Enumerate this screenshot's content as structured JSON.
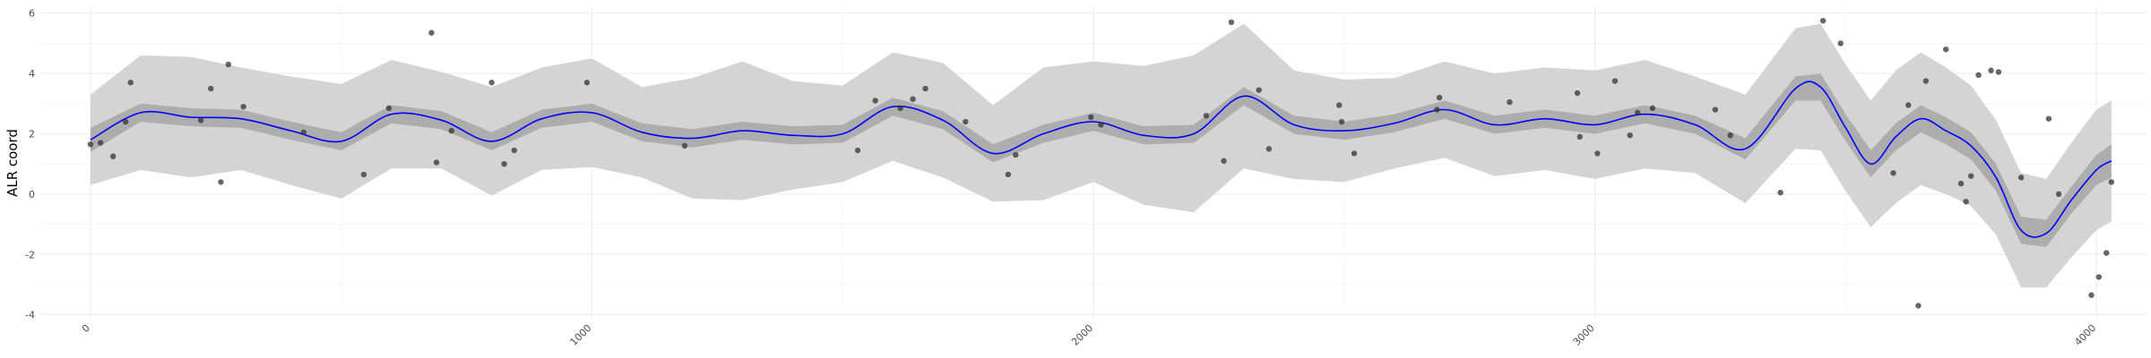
{
  "chart_data": {
    "type": "line",
    "title": "",
    "xlabel": "",
    "ylabel": "ALR coord",
    "xlim": [
      -100,
      4100
    ],
    "ylim": [
      -4.1,
      6.2
    ],
    "x_ticks": [
      "0",
      "1000",
      "2000",
      "3000",
      "4000"
    ],
    "y_ticks": [
      "-4",
      "-2",
      "0",
      "2",
      "4",
      "6"
    ],
    "grid": true,
    "colors": {
      "line": "#0000ff",
      "band_inner": "#adadad",
      "band_outer": "#d4d4d4",
      "points": "#333333",
      "grid": "#ebebeb"
    },
    "fit": {
      "x": [
        0,
        100,
        200,
        300,
        400,
        500,
        600,
        700,
        800,
        900,
        1000,
        1100,
        1200,
        1300,
        1400,
        1500,
        1600,
        1700,
        1800,
        1900,
        2000,
        2100,
        2200,
        2300,
        2400,
        2500,
        2600,
        2700,
        2800,
        2900,
        3000,
        3100,
        3200,
        3300,
        3400,
        3450,
        3500,
        3550,
        3600,
        3650,
        3700,
        3750,
        3800,
        3850,
        3900,
        3950,
        4000,
        4030
      ],
      "y": [
        1.8,
        2.7,
        2.55,
        2.5,
        2.1,
        1.75,
        2.65,
        2.45,
        1.75,
        2.5,
        2.7,
        2.05,
        1.85,
        2.1,
        1.95,
        2.0,
        2.9,
        2.45,
        1.35,
        2.0,
        2.4,
        1.95,
        2.0,
        3.25,
        2.3,
        2.1,
        2.35,
        2.8,
        2.3,
        2.5,
        2.3,
        2.65,
        2.3,
        1.5,
        3.5,
        3.55,
        2.2,
        1.0,
        1.9,
        2.5,
        2.1,
        1.6,
        0.55,
        -1.2,
        -1.3,
        -0.2,
        0.8,
        1.1
      ],
      "inner_half_width": [
        0.4,
        0.3,
        0.3,
        0.3,
        0.3,
        0.3,
        0.3,
        0.3,
        0.3,
        0.3,
        0.3,
        0.3,
        0.3,
        0.3,
        0.3,
        0.3,
        0.3,
        0.3,
        0.3,
        0.3,
        0.3,
        0.3,
        0.3,
        0.3,
        0.3,
        0.3,
        0.3,
        0.3,
        0.3,
        0.3,
        0.3,
        0.3,
        0.3,
        0.35,
        0.4,
        0.45,
        0.45,
        0.45,
        0.45,
        0.45,
        0.45,
        0.45,
        0.45,
        0.45,
        0.45,
        0.45,
        0.5,
        0.55
      ],
      "outer_half_width": [
        1.5,
        1.9,
        2.0,
        1.7,
        1.8,
        1.9,
        1.8,
        1.6,
        1.8,
        1.7,
        1.8,
        1.5,
        2.0,
        2.3,
        1.8,
        1.6,
        1.8,
        1.9,
        1.6,
        2.2,
        2.0,
        2.3,
        2.6,
        2.4,
        1.8,
        1.7,
        1.5,
        1.6,
        1.7,
        1.7,
        1.8,
        1.8,
        1.6,
        1.8,
        2.0,
        2.1,
        2.1,
        2.1,
        2.2,
        2.2,
        2.1,
        2.0,
        1.9,
        1.9,
        1.8,
        1.9,
        2.0,
        2.0
      ]
    },
    "points": [
      [
        0,
        1.65
      ],
      [
        20,
        1.7
      ],
      [
        45,
        1.25
      ],
      [
        70,
        2.4
      ],
      [
        80,
        3.7
      ],
      [
        220,
        2.45
      ],
      [
        240,
        3.5
      ],
      [
        260,
        0.4
      ],
      [
        275,
        4.3
      ],
      [
        305,
        2.9
      ],
      [
        425,
        2.05
      ],
      [
        545,
        0.65
      ],
      [
        595,
        2.85
      ],
      [
        680,
        5.35
      ],
      [
        690,
        1.05
      ],
      [
        720,
        2.1
      ],
      [
        800,
        3.7
      ],
      [
        825,
        1.0
      ],
      [
        845,
        1.45
      ],
      [
        990,
        3.7
      ],
      [
        1185,
        1.6
      ],
      [
        1530,
        1.45
      ],
      [
        1565,
        3.1
      ],
      [
        1615,
        2.85
      ],
      [
        1640,
        3.15
      ],
      [
        1665,
        3.5
      ],
      [
        1745,
        2.4
      ],
      [
        1830,
        0.65
      ],
      [
        1845,
        1.3
      ],
      [
        1995,
        2.55
      ],
      [
        2015,
        2.3
      ],
      [
        2225,
        2.6
      ],
      [
        2260,
        1.1
      ],
      [
        2275,
        5.7
      ],
      [
        2330,
        3.45
      ],
      [
        2350,
        1.5
      ],
      [
        2490,
        2.95
      ],
      [
        2495,
        2.4
      ],
      [
        2520,
        1.35
      ],
      [
        2685,
        2.8
      ],
      [
        2690,
        3.2
      ],
      [
        2830,
        3.05
      ],
      [
        2965,
        3.35
      ],
      [
        2970,
        1.9
      ],
      [
        3005,
        1.35
      ],
      [
        3040,
        3.75
      ],
      [
        3070,
        1.95
      ],
      [
        3085,
        2.7
      ],
      [
        3115,
        2.85
      ],
      [
        3240,
        2.8
      ],
      [
        3270,
        1.95
      ],
      [
        3370,
        0.05
      ],
      [
        3455,
        5.75
      ],
      [
        3490,
        5.0
      ],
      [
        3595,
        0.7
      ],
      [
        3625,
        2.95
      ],
      [
        3645,
        -3.7
      ],
      [
        3660,
        3.75
      ],
      [
        3700,
        4.8
      ],
      [
        3730,
        0.35
      ],
      [
        3740,
        -0.25
      ],
      [
        3750,
        0.6
      ],
      [
        3765,
        3.95
      ],
      [
        3790,
        4.1
      ],
      [
        3805,
        4.05
      ],
      [
        3850,
        0.55
      ],
      [
        3905,
        2.5
      ],
      [
        3925,
        0.0
      ],
      [
        3990,
        -3.35
      ],
      [
        4005,
        -2.75
      ],
      [
        4020,
        -1.95
      ],
      [
        4030,
        0.4
      ]
    ]
  }
}
